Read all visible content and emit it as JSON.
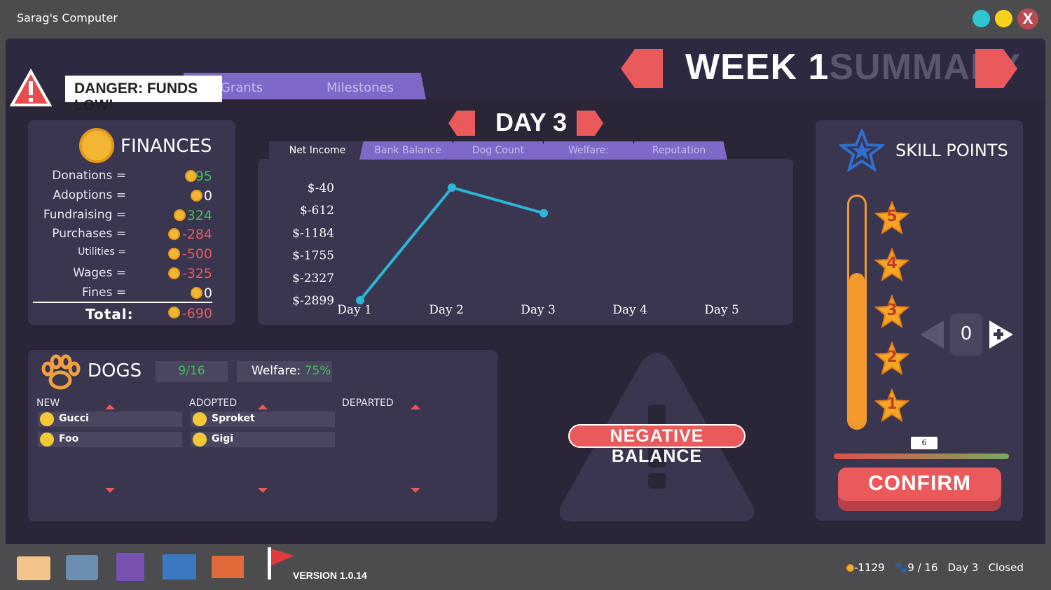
{
  "window": {
    "title": "Sarag's Computer",
    "close": "X"
  },
  "header": {
    "week": "WEEK 1",
    "summary": "SUMMARY"
  },
  "alert": "DANGER: FUNDS LOW!",
  "tabs": [
    "Grants",
    "Milestones"
  ],
  "finances": {
    "title": "FINANCES",
    "rows": [
      {
        "label": "Donations =",
        "value": 95
      },
      {
        "label": "Adoptions =",
        "value": 0
      },
      {
        "label": "Fundraising =",
        "value": 324
      },
      {
        "label": "Purchases =",
        "value": -284
      },
      {
        "label": "Utilities =",
        "value": -500
      },
      {
        "label": "Wages =",
        "value": -325
      },
      {
        "label": "Fines =",
        "value": 0
      }
    ],
    "total": {
      "label": "Total:",
      "value": -690
    }
  },
  "day": "DAY 3",
  "chart": {
    "type": "line",
    "tabs": [
      "Net Income",
      "Bank Balance",
      "Dog Count",
      "Welfare:",
      "Reputation"
    ],
    "categories": [
      "Day 1",
      "Day 2",
      "Day 3",
      "Day 4",
      "Day 5"
    ],
    "values": [
      -2899,
      -40,
      -690,
      null,
      null
    ],
    "color": "#2bb5d6",
    "ylim": [
      -2899,
      -40
    ],
    "yticks": [
      {
        "value": -40,
        "label": "$-40"
      },
      {
        "value": -612,
        "label": "$-612"
      },
      {
        "value": -1184,
        "label": "$-1184"
      },
      {
        "value": -1755,
        "label": "$-1755"
      },
      {
        "value": -2327,
        "label": "$-2327"
      },
      {
        "value": -2899,
        "label": "$-2899"
      }
    ]
  },
  "dogs": {
    "title": "DOGS",
    "count": "9/16",
    "welfare_label": "Welfare:",
    "welfare": "75%",
    "columns": [
      {
        "title": "NEW",
        "dogs": [
          "Gucci",
          "Foo"
        ]
      },
      {
        "title": "ADOPTED",
        "dogs": [
          "Sproket",
          "Gigi"
        ]
      },
      {
        "title": "DEPARTED",
        "dogs": []
      }
    ]
  },
  "warning": "NEGATIVE BALANCE",
  "skills": {
    "title": "SKILL POINTS",
    "stars": [
      5,
      4,
      3,
      2,
      1
    ],
    "points": 0,
    "slider": 6,
    "confirm": "CONFIRM"
  },
  "taskbar": {
    "version": "VERSION 1.0.14",
    "money": -1129,
    "dogs": "9 / 16",
    "day": "Day 3",
    "status": "Closed"
  }
}
